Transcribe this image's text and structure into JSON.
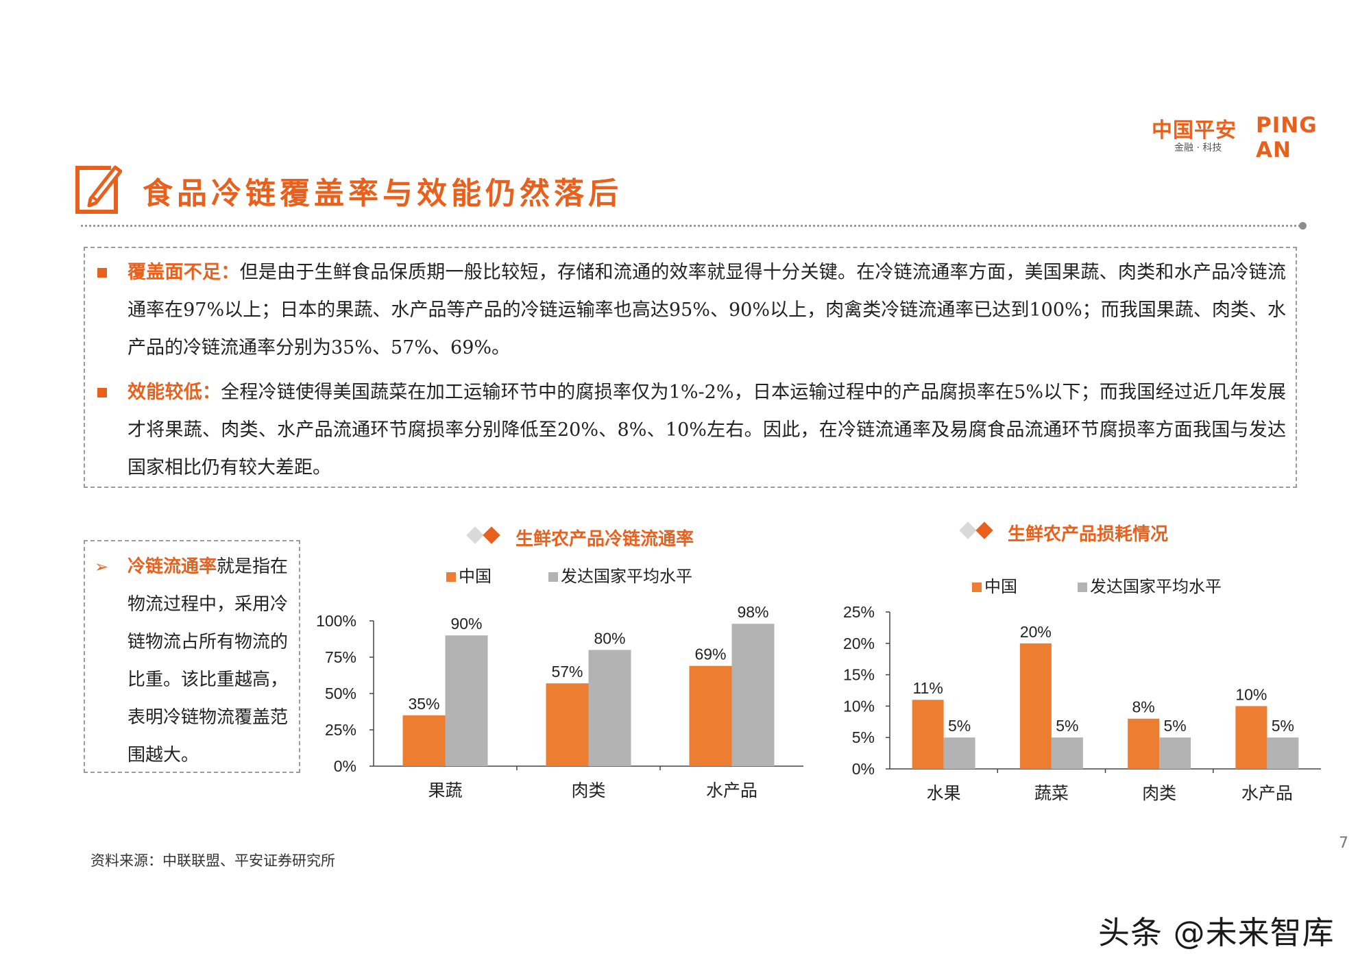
{
  "brand": {
    "cn": "中国平安",
    "en": "PING AN",
    "sub": "金融 · 科技"
  },
  "title": "食品冷链覆盖率与效能仍然落后",
  "paragraphs": [
    {
      "head": "覆盖面不足：",
      "body": "但是由于生鲜食品保质期一般比较短，存储和流通的效率就显得十分关键。在冷链流通率方面，美国果蔬、肉类和水产品冷链流通率在97%以上；日本的果蔬、水产品等产品的冷链运输率也高达95%、90%以上，肉禽类冷链流通率已达到100%；而我国果蔬、肉类、水产品的冷链流通率分别为35%、57%、69%。"
    },
    {
      "head": "效能较低：",
      "body": "全程冷链使得美国蔬菜在加工运输环节中的腐损率仅为1%-2%，日本运输过程中的产品腐损率在5%以下；而我国经过近几年发展才将果蔬、肉类、水产品流通环节腐损率分别降低至20%、8%、10%左右。因此，在冷链流通率及易腐食品流通环节腐损率方面我国与发达国家相比仍有较大差距。"
    }
  ],
  "note": {
    "arrow": "➢",
    "highlight": "冷链流通率",
    "text": "就是指在物流过程中，采用冷链物流占所有物流的比重。该比重越高，表明冷链物流覆盖范围越大。"
  },
  "colors": {
    "china": "#ed7d31",
    "developed": "#b3b3b3",
    "accent": "#e8601c"
  },
  "chart_data": [
    {
      "type": "bar",
      "title": "生鲜农产品冷链流通率",
      "categories": [
        "果蔬",
        "肉类",
        "水产品"
      ],
      "series": [
        {
          "name": "中国",
          "values": [
            35,
            57,
            69
          ],
          "labels": [
            "35%",
            "57%",
            "69%"
          ]
        },
        {
          "name": "发达国家平均水平",
          "values": [
            90,
            80,
            98
          ],
          "labels": [
            "90%",
            "80%",
            "98%"
          ]
        }
      ],
      "ylim": [
        0,
        100
      ],
      "yticks": [
        "0%",
        "25%",
        "50%",
        "75%",
        "100%"
      ],
      "legend": "top"
    },
    {
      "type": "bar",
      "title": "生鲜农产品损耗情况",
      "categories": [
        "水果",
        "蔬菜",
        "肉类",
        "水产品"
      ],
      "series": [
        {
          "name": "中国",
          "values": [
            11,
            20,
            8,
            10
          ],
          "labels": [
            "11%",
            "20%",
            "8%",
            "10%"
          ]
        },
        {
          "name": "发达国家平均水平",
          "values": [
            5,
            5,
            5,
            5
          ],
          "labels": [
            "5%",
            "5%",
            "5%",
            "5%"
          ]
        }
      ],
      "ylim": [
        0,
        25
      ],
      "yticks": [
        "0%",
        "5%",
        "10%",
        "15%",
        "20%",
        "25%"
      ],
      "legend": "top"
    }
  ],
  "source": "资料来源：中联联盟、平安证券研究所",
  "page_number": "7",
  "watermark": "头条 @未来智库"
}
